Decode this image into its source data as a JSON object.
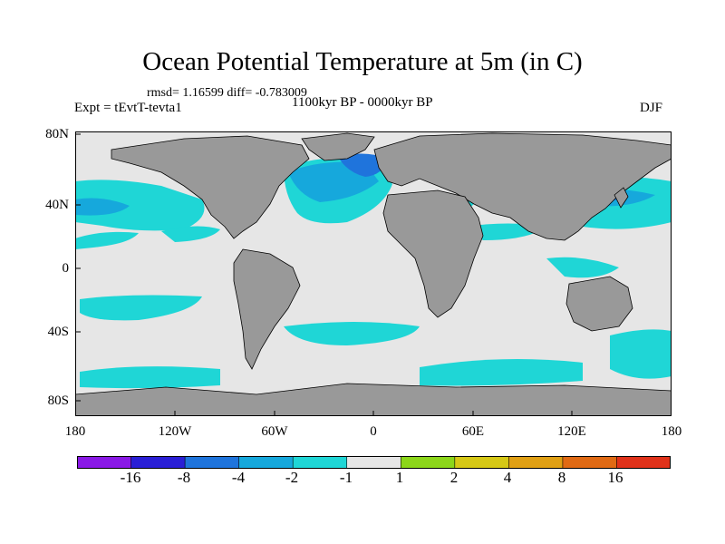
{
  "figure": {
    "title": "Ocean Potential Temperature at 5m (in C)",
    "stats": "rmsd= 1.16599  diff= -0.783009",
    "experiment": "Expt = tEvtT-tevta1",
    "period": "1100kyr BP - 0000kyr BP",
    "season": "DJF"
  },
  "axes": {
    "lat_labels": [
      "80N",
      "40N",
      "0",
      "40S",
      "80S"
    ],
    "lon_labels": [
      "180",
      "120W",
      "60W",
      "0",
      "60E",
      "120E",
      "180"
    ]
  },
  "colorbar": {
    "labels": [
      "-16",
      "-8",
      "-4",
      "-2",
      "-1",
      "1",
      "2",
      "4",
      "8",
      "16"
    ],
    "colors": [
      "#8a19e6",
      "#2a1fd6",
      "#1f74dc",
      "#16a8dc",
      "#1fd6d6",
      "#e6e6e6",
      "#8cd61a",
      "#d6c816",
      "#e0a014",
      "#e06a14",
      "#e0321a"
    ]
  },
  "palette": {
    "land": "#999999",
    "ocean_neutral": "#e6e6e6",
    "cyan": "#1fd6d6",
    "sky": "#16a8dc",
    "blue": "#1f74dc",
    "green": "#8cd61a"
  }
}
